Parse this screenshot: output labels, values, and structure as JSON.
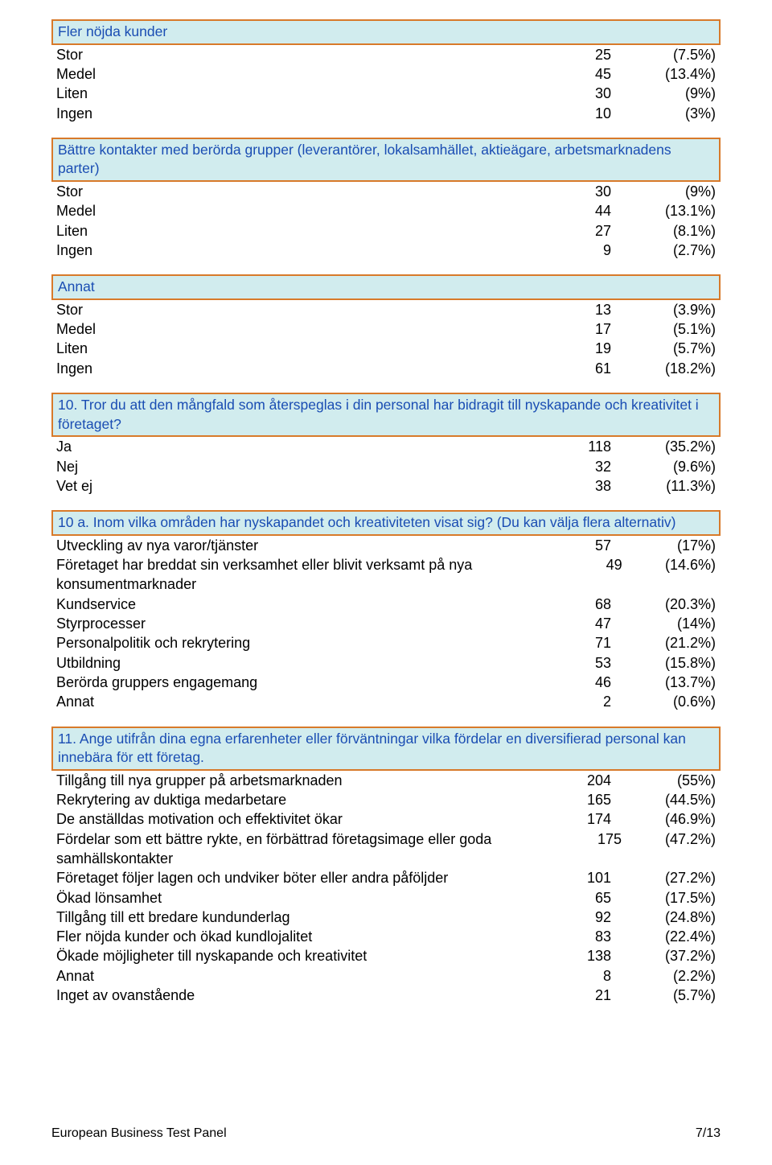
{
  "colors": {
    "header_border": "#d87a2a",
    "header_bg": "#d1ecee",
    "header_text": "#1a4db3",
    "body_text": "#000000",
    "page_bg": "#ffffff"
  },
  "typography": {
    "body_font": "Arial",
    "header_font": "Trebuchet MS",
    "body_size_pt": 13,
    "header_size_pt": 13
  },
  "b1": {
    "title": "Fler nöjda kunder",
    "rows": [
      {
        "label": "Stor",
        "num": "25",
        "pct": "(7.5%)"
      },
      {
        "label": "Medel",
        "num": "45",
        "pct": "(13.4%)"
      },
      {
        "label": "Liten",
        "num": "30",
        "pct": "(9%)"
      },
      {
        "label": "Ingen",
        "num": "10",
        "pct": "(3%)"
      }
    ]
  },
  "b2": {
    "title": "Bättre kontakter med berörda grupper (leverantörer, lokalsamhället, aktieägare, arbetsmarknadens parter)",
    "rows": [
      {
        "label": "Stor",
        "num": "30",
        "pct": "(9%)"
      },
      {
        "label": "Medel",
        "num": "44",
        "pct": "(13.1%)"
      },
      {
        "label": "Liten",
        "num": "27",
        "pct": "(8.1%)"
      },
      {
        "label": "Ingen",
        "num": "9",
        "pct": "(2.7%)"
      }
    ]
  },
  "b3": {
    "title": "Annat",
    "rows": [
      {
        "label": "Stor",
        "num": "13",
        "pct": "(3.9%)"
      },
      {
        "label": "Medel",
        "num": "17",
        "pct": "(5.1%)"
      },
      {
        "label": "Liten",
        "num": "19",
        "pct": "(5.7%)"
      },
      {
        "label": "Ingen",
        "num": "61",
        "pct": "(18.2%)"
      }
    ]
  },
  "b4": {
    "title": "10. Tror du att den mångfald som återspeglas i din personal har bidragit till nyskapande och kreativitet i företaget?",
    "rows": [
      {
        "label": "Ja",
        "num": "118",
        "pct": "(35.2%)"
      },
      {
        "label": "Nej",
        "num": "32",
        "pct": "(9.6%)"
      },
      {
        "label": "Vet ej",
        "num": "38",
        "pct": "(11.3%)"
      }
    ]
  },
  "b5": {
    "title": "10 a. Inom vilka områden har nyskapandet och kreativiteten visat sig? (Du kan välja flera alternativ)",
    "rows": [
      {
        "label": "Utveckling av nya varor/tjänster",
        "num": "57",
        "pct": "(17%)"
      },
      {
        "label": "Företaget har breddat sin verksamhet eller blivit verksamt på nya konsumentmarknader",
        "num": "49",
        "pct": "(14.6%)"
      },
      {
        "label": "Kundservice",
        "num": "68",
        "pct": "(20.3%)"
      },
      {
        "label": "Styrprocesser",
        "num": "47",
        "pct": "(14%)"
      },
      {
        "label": "Personalpolitik och rekrytering",
        "num": "71",
        "pct": "(21.2%)"
      },
      {
        "label": "Utbildning",
        "num": "53",
        "pct": "(15.8%)"
      },
      {
        "label": "Berörda gruppers engagemang",
        "num": "46",
        "pct": "(13.7%)"
      },
      {
        "label": "Annat",
        "num": "2",
        "pct": "(0.6%)"
      }
    ]
  },
  "b6": {
    "title": "11. Ange utifrån dina egna erfarenheter eller förväntningar vilka fördelar en diversifierad personal kan innebära för ett företag.",
    "rows": [
      {
        "label": "Tillgång till nya grupper på arbetsmarknaden",
        "num": "204",
        "pct": "(55%)"
      },
      {
        "label": "Rekrytering av duktiga medarbetare",
        "num": "165",
        "pct": "(44.5%)"
      },
      {
        "label": "De anställdas motivation och effektivitet ökar",
        "num": "174",
        "pct": "(46.9%)"
      },
      {
        "label": "Fördelar som ett bättre rykte, en förbättrad företagsimage eller goda samhällskontakter",
        "num": "175",
        "pct": "(47.2%)"
      },
      {
        "label": "Företaget följer lagen och undviker böter eller andra påföljder",
        "num": "101",
        "pct": "(27.2%)"
      },
      {
        "label": "Ökad lönsamhet",
        "num": "65",
        "pct": "(17.5%)"
      },
      {
        "label": "Tillgång till ett bredare kundunderlag",
        "num": "92",
        "pct": "(24.8%)"
      },
      {
        "label": "Fler nöjda kunder och ökad kundlojalitet",
        "num": "83",
        "pct": "(22.4%)"
      },
      {
        "label": "Ökade möjligheter till nyskapande och kreativitet",
        "num": "138",
        "pct": "(37.2%)"
      },
      {
        "label": "Annat",
        "num": "8",
        "pct": "(2.2%)"
      },
      {
        "label": "Inget av ovanstående",
        "num": "21",
        "pct": "(5.7%)"
      }
    ]
  },
  "footer": {
    "left": "European Business Test Panel",
    "right": "7/13"
  }
}
